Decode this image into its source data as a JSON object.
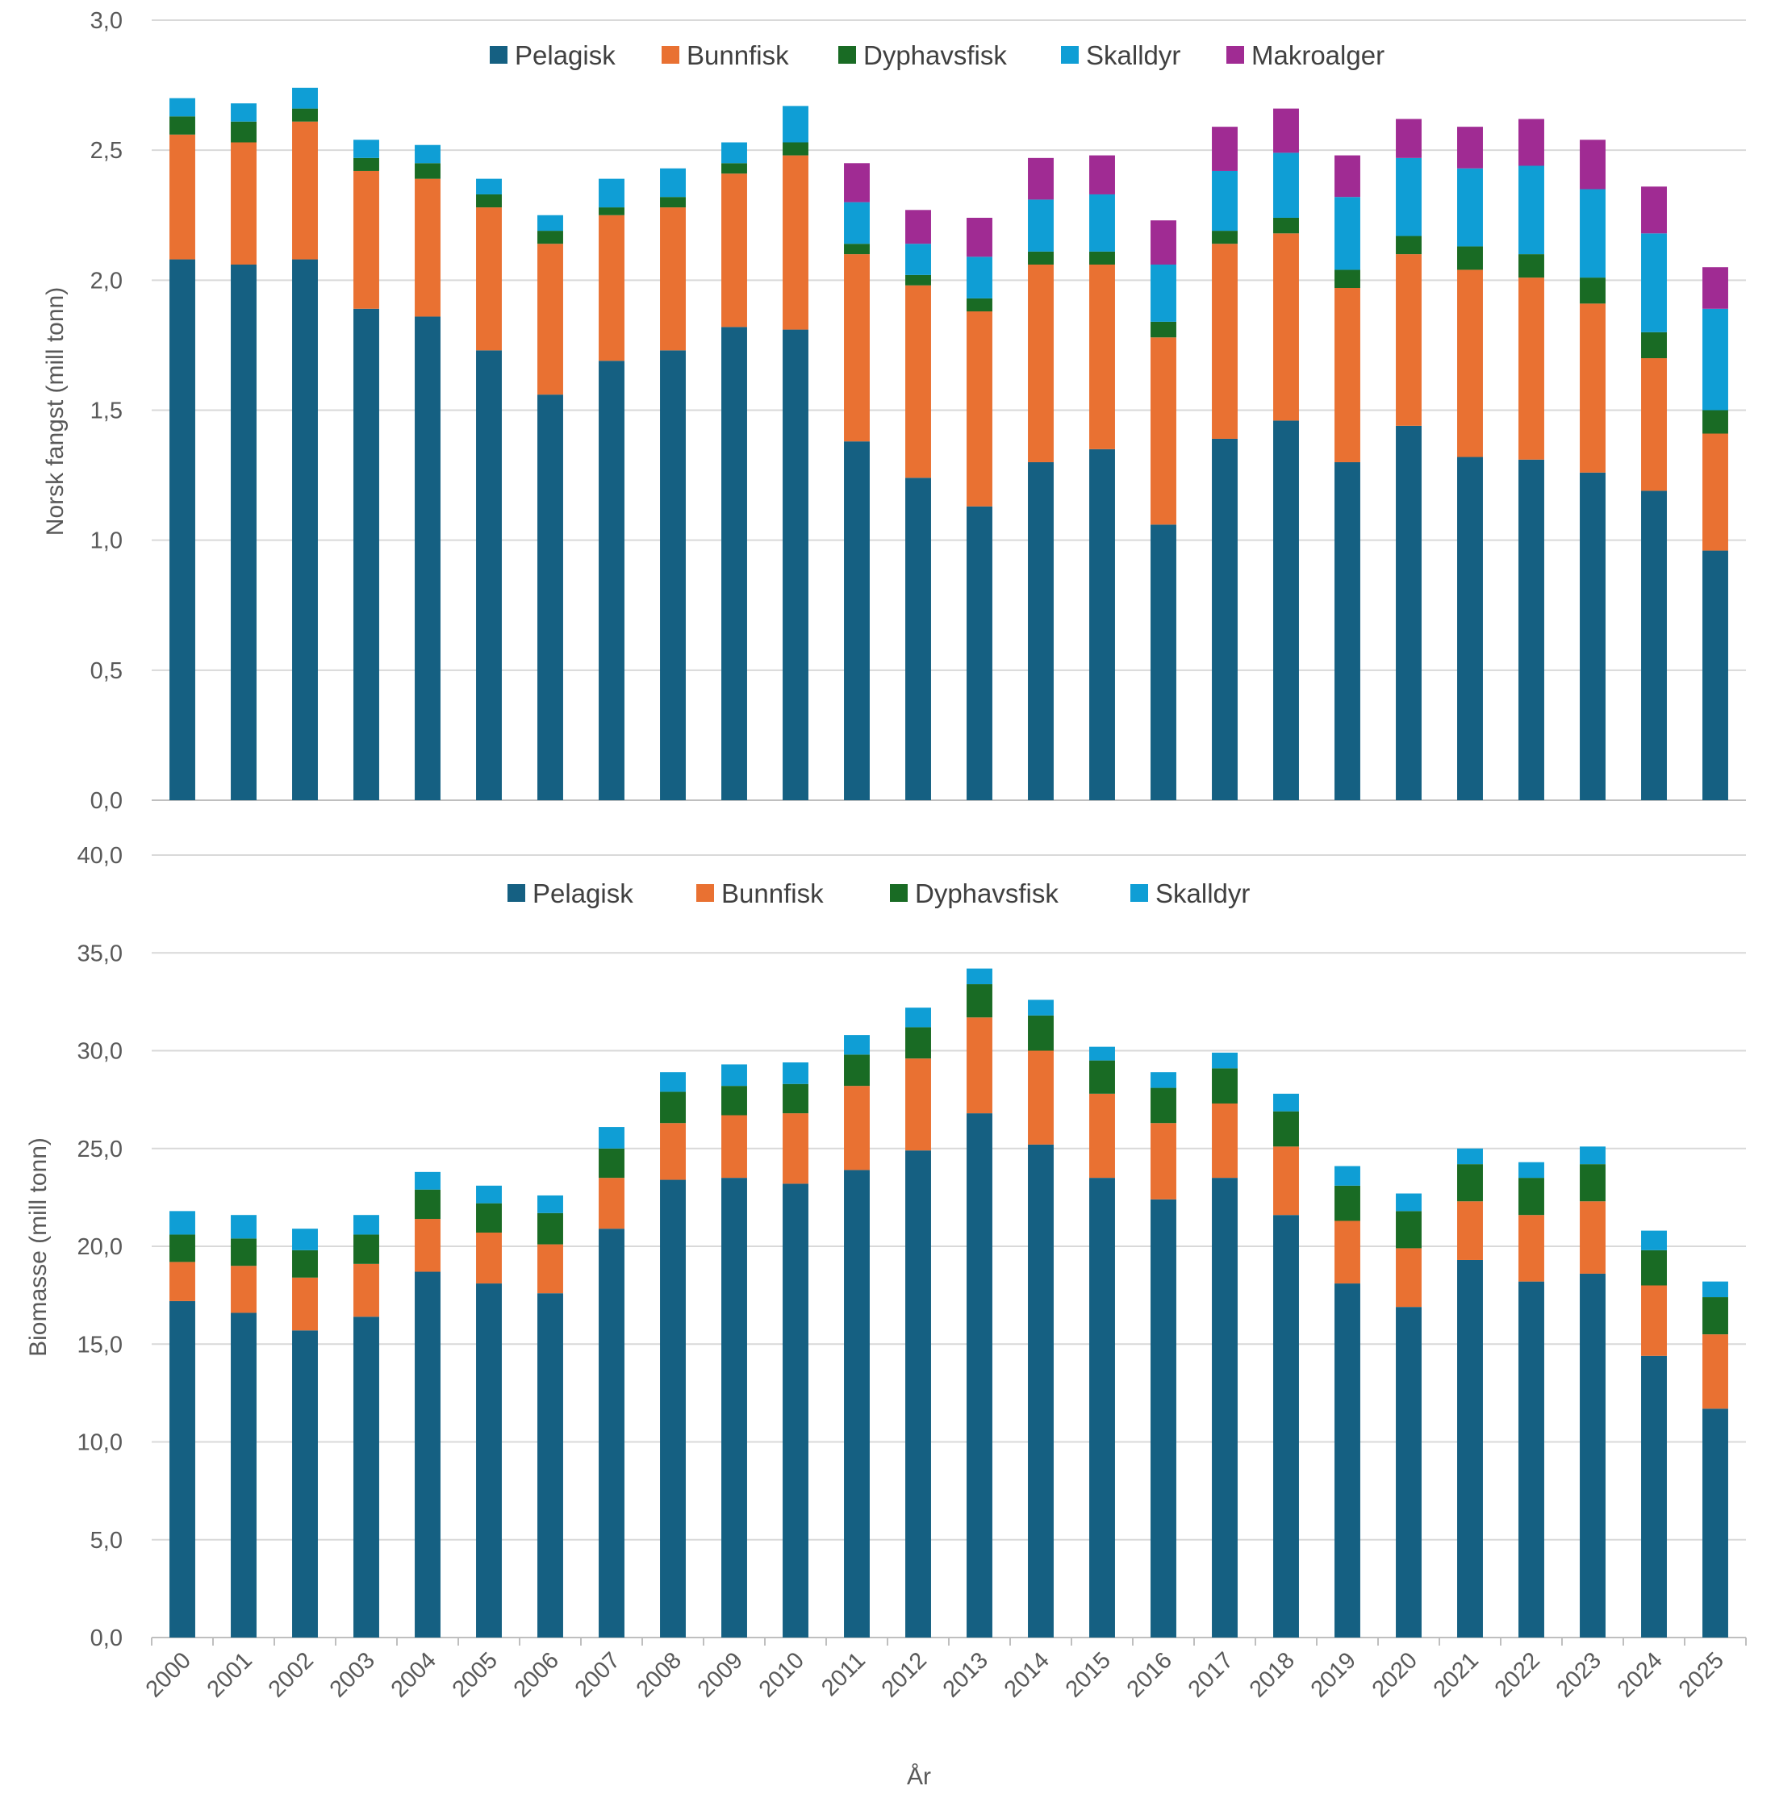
{
  "colors": {
    "Pelagisk": "#156082",
    "Bunnfisk": "#e97132",
    "Dyphavsfisk": "#196b24",
    "Skalldyr": "#0f9ed5",
    "Makroalger": "#a02b93"
  },
  "chart_data": [
    {
      "type": "bar",
      "stacked": true,
      "title": "",
      "xlabel": "",
      "ylabel": "Norsk fangst (mill tonn)",
      "ylim": [
        0,
        3.0
      ],
      "yticks": [
        "0,0",
        "0,5",
        "1,0",
        "1,5",
        "2,0",
        "2,5",
        "3,0"
      ],
      "grid": true,
      "legend": "top",
      "categories": [
        "2000",
        "2001",
        "2002",
        "2003",
        "2004",
        "2005",
        "2006",
        "2007",
        "2008",
        "2009",
        "2010",
        "2011",
        "2012",
        "2013",
        "2014",
        "2015",
        "2016",
        "2017",
        "2018",
        "2019",
        "2020",
        "2021",
        "2022",
        "2023",
        "2024",
        "2025"
      ],
      "series": [
        {
          "name": "Pelagisk",
          "values": [
            2.08,
            2.06,
            2.08,
            1.89,
            1.86,
            1.73,
            1.56,
            1.69,
            1.73,
            1.82,
            1.81,
            1.38,
            1.24,
            1.13,
            1.3,
            1.35,
            1.06,
            1.39,
            1.46,
            1.3,
            1.44,
            1.32,
            1.31,
            1.26,
            1.19,
            0.96
          ]
        },
        {
          "name": "Bunnfisk",
          "values": [
            0.48,
            0.47,
            0.53,
            0.53,
            0.53,
            0.55,
            0.58,
            0.56,
            0.55,
            0.59,
            0.67,
            0.72,
            0.74,
            0.75,
            0.76,
            0.71,
            0.72,
            0.75,
            0.72,
            0.67,
            0.66,
            0.72,
            0.7,
            0.65,
            0.51,
            0.45
          ]
        },
        {
          "name": "Dyphavsfisk",
          "values": [
            0.07,
            0.08,
            0.05,
            0.05,
            0.06,
            0.05,
            0.05,
            0.03,
            0.04,
            0.04,
            0.05,
            0.04,
            0.04,
            0.05,
            0.05,
            0.05,
            0.06,
            0.05,
            0.06,
            0.07,
            0.07,
            0.09,
            0.09,
            0.1,
            0.1,
            0.09
          ]
        },
        {
          "name": "Skalldyr",
          "values": [
            0.07,
            0.07,
            0.08,
            0.07,
            0.07,
            0.06,
            0.06,
            0.11,
            0.11,
            0.08,
            0.14,
            0.16,
            0.12,
            0.16,
            0.2,
            0.22,
            0.22,
            0.23,
            0.25,
            0.28,
            0.3,
            0.3,
            0.34,
            0.34,
            0.38,
            0.39
          ]
        },
        {
          "name": "Makroalger",
          "values": [
            0,
            0,
            0,
            0,
            0,
            0,
            0,
            0,
            0,
            0,
            0,
            0.15,
            0.13,
            0.15,
            0.16,
            0.15,
            0.17,
            0.17,
            0.17,
            0.16,
            0.15,
            0.16,
            0.18,
            0.19,
            0.18,
            0.16
          ]
        }
      ]
    },
    {
      "type": "bar",
      "stacked": true,
      "title": "",
      "xlabel": "År",
      "ylabel": "Biomasse (mill tonn)",
      "ylim": [
        0,
        40
      ],
      "yticks": [
        "0,0",
        "5,0",
        "10,0",
        "15,0",
        "20,0",
        "25,0",
        "30,0",
        "35,0",
        "40,0"
      ],
      "grid": true,
      "legend": "top",
      "categories": [
        "2000",
        "2001",
        "2002",
        "2003",
        "2004",
        "2005",
        "2006",
        "2007",
        "2008",
        "2009",
        "2010",
        "2011",
        "2012",
        "2013",
        "2014",
        "2015",
        "2016",
        "2017",
        "2018",
        "2019",
        "2020",
        "2021",
        "2022",
        "2023",
        "2024",
        "2025"
      ],
      "series": [
        {
          "name": "Pelagisk",
          "values": [
            17.2,
            16.6,
            15.7,
            16.4,
            18.7,
            18.1,
            17.6,
            20.9,
            23.4,
            23.5,
            23.2,
            23.9,
            24.9,
            26.8,
            25.2,
            23.5,
            22.4,
            23.5,
            21.6,
            18.1,
            16.9,
            19.3,
            18.2,
            18.6,
            14.4,
            11.7
          ]
        },
        {
          "name": "Bunnfisk",
          "values": [
            2.0,
            2.4,
            2.7,
            2.7,
            2.7,
            2.6,
            2.5,
            2.6,
            2.9,
            3.2,
            3.6,
            4.3,
            4.7,
            4.9,
            4.8,
            4.3,
            3.9,
            3.8,
            3.5,
            3.2,
            3.0,
            3.0,
            3.4,
            3.7,
            3.6,
            3.8
          ]
        },
        {
          "name": "Dyphavsfisk",
          "values": [
            1.4,
            1.4,
            1.4,
            1.5,
            1.5,
            1.5,
            1.6,
            1.5,
            1.6,
            1.5,
            1.5,
            1.6,
            1.6,
            1.7,
            1.8,
            1.7,
            1.8,
            1.8,
            1.8,
            1.8,
            1.9,
            1.9,
            1.9,
            1.9,
            1.8,
            1.9
          ]
        },
        {
          "name": "Skalldyr",
          "values": [
            1.2,
            1.2,
            1.1,
            1.0,
            0.9,
            0.9,
            0.9,
            1.1,
            1.0,
            1.1,
            1.1,
            1.0,
            1.0,
            0.8,
            0.8,
            0.7,
            0.8,
            0.8,
            0.9,
            1.0,
            0.9,
            0.8,
            0.8,
            0.9,
            1.0,
            0.8
          ]
        }
      ]
    }
  ]
}
